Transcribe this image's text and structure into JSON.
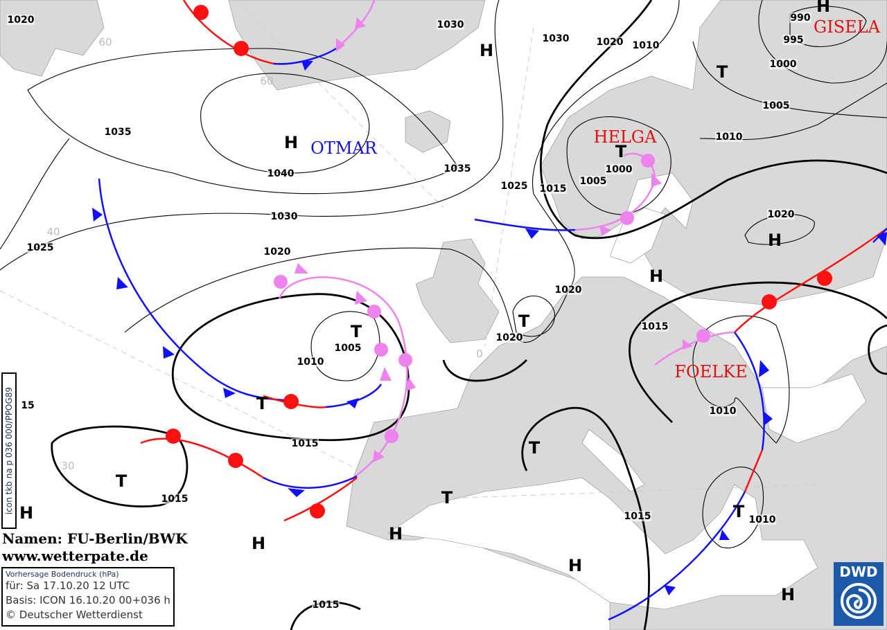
{
  "map": {
    "colors": {
      "land": "#d9d9d9",
      "sea": "#ffffff",
      "warm_front": "#ff1010",
      "cold_front": "#1010ff",
      "occlusion": "#ee82ee",
      "names_low": "#e01010",
      "names_high": "#1010e0"
    },
    "isobar_labels": [
      "1020",
      "1030",
      "1030",
      "1020",
      "1010",
      "990",
      "995",
      "1000",
      "1005",
      "1010",
      "1035",
      "1040",
      "1035",
      "1025",
      "1015",
      "1000",
      "1005",
      "1030",
      "1025",
      "1020",
      "1020",
      "1020",
      "1020",
      "1015",
      "1010",
      "1005",
      "1015",
      "1015",
      "1010",
      "1010",
      "1015",
      "1015",
      "15"
    ],
    "pressure_centers": [
      "H",
      "H",
      "T",
      "T",
      "H",
      "H",
      "T",
      "T",
      "T",
      "T",
      "T",
      "T",
      "H",
      "H",
      "H",
      "H",
      "T",
      "H",
      "H"
    ],
    "storm_names": [
      {
        "name": "OTMAR",
        "type": "high"
      },
      {
        "name": "HELGA",
        "type": "low"
      },
      {
        "name": "GISELA",
        "type": "low"
      },
      {
        "name": "FOELKE",
        "type": "low"
      }
    ],
    "latitude_labels": [
      "60",
      "60",
      "40",
      "30",
      "0"
    ]
  },
  "credit": {
    "names": "Namen: FU-Berlin/BWK",
    "url": "www.wetterpate.de"
  },
  "info": {
    "title": "Vorhersage Bodendruck (hPa)",
    "valid": "für:  Sa 17.10.20  12 UTC",
    "basis": "Basis: ICON  16.10.20 00+036 h",
    "copyright": "© Deutscher Wetterdienst"
  },
  "run_id": "icon tkb na p 036 000/PPOG89",
  "logo": "DWD"
}
